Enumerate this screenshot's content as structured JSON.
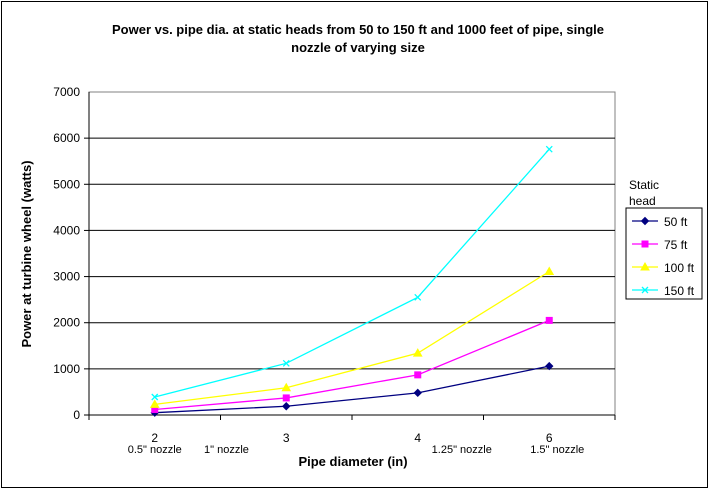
{
  "chart_data": {
    "type": "line",
    "title_lines": [
      "Power vs. pipe dia. at static heads from 50 to 150 ft and 1000 feet of pipe, single",
      "nozzle of varying size"
    ],
    "xlabel": "Pipe diameter (in)",
    "ylabel": "Power at turbine wheel (watts)",
    "categories": [
      "2",
      "3",
      "4",
      "6"
    ],
    "category_notes": [
      "0.5\" nozzle",
      "1\" nozzle",
      "1.25\" nozzle",
      "1.5\" nozzle"
    ],
    "ylim": [
      0,
      7000
    ],
    "yticks": [
      "0",
      "1000",
      "2000",
      "3000",
      "4000",
      "5000",
      "6000",
      "7000"
    ],
    "grid": true,
    "legend_title_lines": [
      "Static",
      "head"
    ],
    "legend_position": "right",
    "series": [
      {
        "name": "50 ft",
        "values": [
          50,
          190,
          480,
          1060
        ],
        "color": "#000080",
        "marker": "diamond"
      },
      {
        "name": "75 ft",
        "values": [
          120,
          370,
          870,
          2050
        ],
        "color": "#ff00ff",
        "marker": "square"
      },
      {
        "name": "100 ft",
        "values": [
          230,
          590,
          1340,
          3110
        ],
        "color": "#ffff00",
        "marker": "triangle"
      },
      {
        "name": "150 ft",
        "values": [
          390,
          1120,
          2550,
          5760
        ],
        "color": "#00ffff",
        "marker": "x"
      }
    ]
  }
}
